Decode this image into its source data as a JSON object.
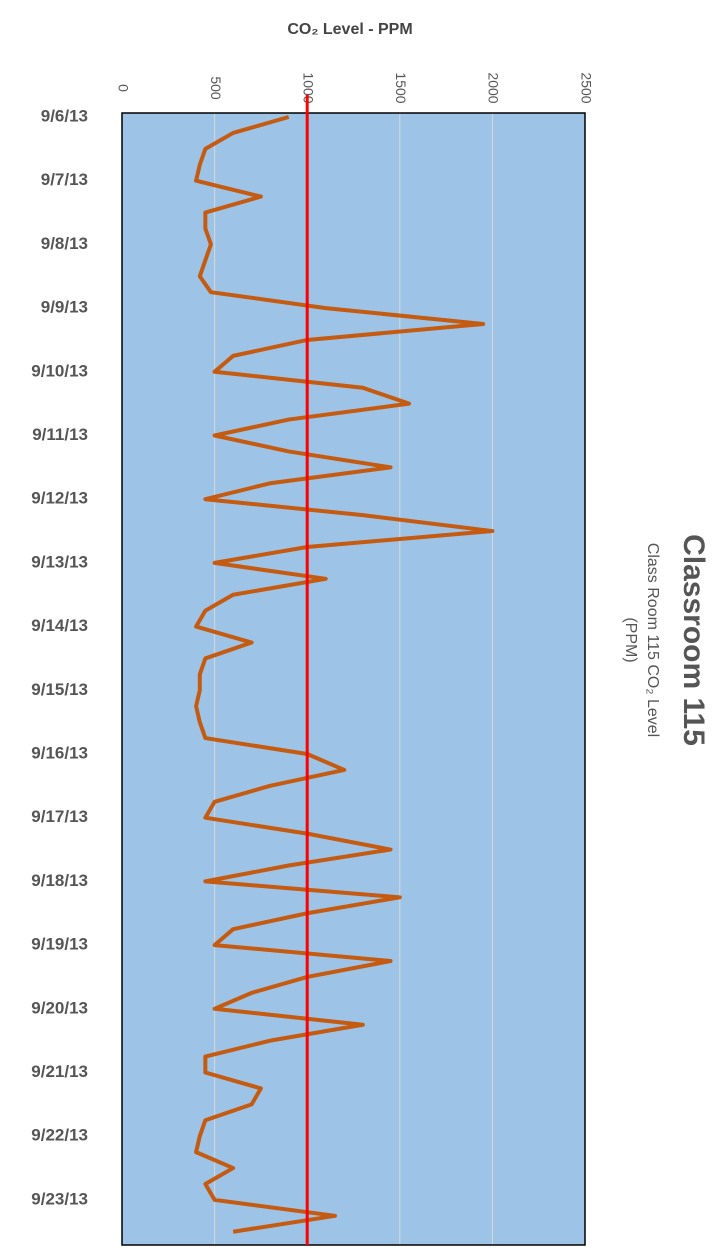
{
  "chart_data": {
    "type": "line",
    "title": "Classroom 115",
    "subtitle": [
      "Class Room 115 CO₂ Level",
      "(PPM)"
    ],
    "y_label": "CO₂ Level - PPM",
    "categories": [
      "9/6/13",
      null,
      null,
      null,
      "9/7/13",
      null,
      null,
      null,
      "9/8/13",
      null,
      null,
      null,
      "9/9/13",
      null,
      null,
      null,
      "9/10/13",
      null,
      null,
      null,
      "9/11/13",
      null,
      null,
      null,
      "9/12/13",
      null,
      null,
      null,
      "9/13/13",
      null,
      null,
      null,
      "9/14/13",
      null,
      null,
      null,
      "9/15/13",
      null,
      null,
      null,
      "9/16/13",
      null,
      null,
      null,
      "9/17/13",
      null,
      null,
      null,
      "9/18/13",
      null,
      null,
      null,
      "9/19/13",
      null,
      null,
      null,
      "9/20/13",
      null,
      null,
      null,
      "9/21/13",
      null,
      null,
      null,
      "9/22/13",
      null,
      null,
      null,
      "9/23/13",
      null,
      null
    ],
    "series": [
      {
        "name": "CO₂ Level",
        "color": "#c55a11",
        "values": [
          900,
          600,
          450,
          420,
          400,
          750,
          450,
          450,
          480,
          450,
          420,
          480,
          1100,
          1950,
          1000,
          600,
          500,
          1300,
          1550,
          900,
          500,
          900,
          1450,
          800,
          450,
          1300,
          2000,
          1000,
          500,
          1100,
          600,
          450,
          400,
          700,
          450,
          420,
          420,
          400,
          420,
          450,
          1000,
          1200,
          800,
          500,
          450,
          1000,
          1450,
          900,
          450,
          1500,
          1000,
          600,
          500,
          1450,
          1000,
          700,
          500,
          1300,
          800,
          450,
          450,
          750,
          700,
          450,
          420,
          400,
          600,
          450,
          500,
          1150,
          600
        ]
      }
    ],
    "reference_line": {
      "value": 1000,
      "color": "#ff0000"
    },
    "ylim": [
      0,
      2500
    ],
    "yticks": [
      0,
      500,
      1000,
      1500,
      2000,
      2500
    ],
    "grid": true,
    "background": "#9dc3e6"
  }
}
